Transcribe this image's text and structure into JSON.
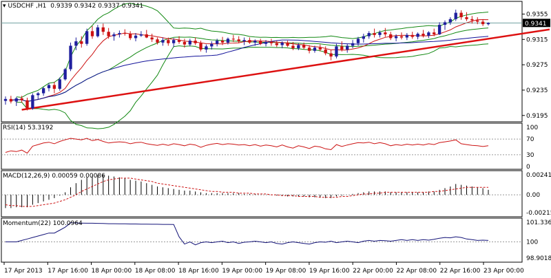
{
  "chart_data": {
    "type": "candlestick",
    "symbol": "USDCHF",
    "timeframe": "H1",
    "ohlc_readout": [
      "0.9339",
      "0.9342",
      "0.9337",
      "0.9341"
    ],
    "current_price": "0.9341",
    "colors": {
      "bull": "#1f1f9e",
      "bear": "#cc1111",
      "trend": "#dd1111",
      "bollinger": "#118811",
      "sma_fast": "#cc1111",
      "sma_slow": "#111199",
      "rsi": "#cc1111",
      "macd_hist": "#000000",
      "macd_signal": "#cc1111",
      "momentum": "#111177"
    },
    "price_axis": {
      "ticks": [
        "0.9355",
        "0.9315",
        "0.9275",
        "0.9235",
        "0.9195"
      ],
      "range": [
        0.9185,
        0.9375
      ]
    },
    "x_labels": [
      "17 Apr 2013",
      "17 Apr 16:00",
      "18 Apr 00:00",
      "18 Apr 08:00",
      "18 Apr 16:00",
      "19 Apr 00:00",
      "19 Apr 08:00",
      "19 Apr 16:00",
      "22 Apr 00:00",
      "22 Apr 08:00",
      "22 Apr 16:00",
      "23 Apr 00:00"
    ],
    "candles": [
      [
        0.9218,
        0.9225,
        0.9212,
        0.9221
      ],
      [
        0.9221,
        0.9226,
        0.9214,
        0.9217
      ],
      [
        0.9217,
        0.9224,
        0.921,
        0.9222
      ],
      [
        0.9222,
        0.9226,
        0.9215,
        0.9219
      ],
      [
        0.9219,
        0.9223,
        0.9203,
        0.9206
      ],
      [
        0.9206,
        0.923,
        0.9204,
        0.9227
      ],
      [
        0.9227,
        0.9232,
        0.922,
        0.923
      ],
      [
        0.923,
        0.924,
        0.9226,
        0.9238
      ],
      [
        0.9238,
        0.9246,
        0.9233,
        0.9243
      ],
      [
        0.9243,
        0.9248,
        0.923,
        0.9237
      ],
      [
        0.9237,
        0.9255,
        0.9234,
        0.9252
      ],
      [
        0.9252,
        0.927,
        0.925,
        0.9268
      ],
      [
        0.9268,
        0.931,
        0.9265,
        0.9305
      ],
      [
        0.9305,
        0.9318,
        0.9298,
        0.9312
      ],
      [
        0.9312,
        0.932,
        0.9302,
        0.9308
      ],
      [
        0.9308,
        0.9332,
        0.9305,
        0.9328
      ],
      [
        0.9328,
        0.9336,
        0.9316,
        0.932
      ],
      [
        0.932,
        0.9338,
        0.9318,
        0.9334
      ],
      [
        0.9334,
        0.934,
        0.9322,
        0.9327
      ],
      [
        0.9327,
        0.9333,
        0.9316,
        0.932
      ],
      [
        0.932,
        0.9326,
        0.9313,
        0.9323
      ],
      [
        0.9323,
        0.9329,
        0.9318,
        0.9325
      ],
      [
        0.9325,
        0.9331,
        0.9321,
        0.9324
      ],
      [
        0.9324,
        0.9328,
        0.9314,
        0.9317
      ],
      [
        0.9317,
        0.9325,
        0.9312,
        0.9321
      ],
      [
        0.9321,
        0.9328,
        0.9319,
        0.9323
      ],
      [
        0.9323,
        0.933,
        0.9317,
        0.9318
      ],
      [
        0.9318,
        0.9324,
        0.9311,
        0.9315
      ],
      [
        0.9315,
        0.9318,
        0.9307,
        0.931
      ],
      [
        0.931,
        0.9318,
        0.9305,
        0.9314
      ],
      [
        0.9314,
        0.9318,
        0.9305,
        0.9309
      ],
      [
        0.9309,
        0.9317,
        0.9303,
        0.9314
      ],
      [
        0.9314,
        0.932,
        0.9308,
        0.9311
      ],
      [
        0.9311,
        0.9316,
        0.9302,
        0.9307
      ],
      [
        0.9307,
        0.9316,
        0.9304,
        0.9313
      ],
      [
        0.9313,
        0.9318,
        0.9306,
        0.9309
      ],
      [
        0.9309,
        0.9313,
        0.9296,
        0.9299
      ],
      [
        0.9299,
        0.9307,
        0.9294,
        0.9304
      ],
      [
        0.9304,
        0.9312,
        0.9299,
        0.9308
      ],
      [
        0.9308,
        0.9316,
        0.9304,
        0.9313
      ],
      [
        0.9313,
        0.9319,
        0.9306,
        0.931
      ],
      [
        0.931,
        0.9318,
        0.9307,
        0.9316
      ],
      [
        0.9316,
        0.9322,
        0.9311,
        0.9315
      ],
      [
        0.9315,
        0.932,
        0.9309,
        0.9312
      ],
      [
        0.9312,
        0.9318,
        0.9306,
        0.9314
      ],
      [
        0.9314,
        0.9318,
        0.9308,
        0.931
      ],
      [
        0.931,
        0.9315,
        0.9305,
        0.9313
      ],
      [
        0.9313,
        0.9316,
        0.9306,
        0.9308
      ],
      [
        0.9308,
        0.9314,
        0.9304,
        0.9311
      ],
      [
        0.9311,
        0.9316,
        0.9305,
        0.9309
      ],
      [
        0.9309,
        0.9313,
        0.9303,
        0.9306
      ],
      [
        0.9306,
        0.9312,
        0.9301,
        0.931
      ],
      [
        0.931,
        0.9313,
        0.9303,
        0.9305
      ],
      [
        0.9305,
        0.9311,
        0.9298,
        0.9301
      ],
      [
        0.9301,
        0.9309,
        0.9298,
        0.9306
      ],
      [
        0.9306,
        0.931,
        0.9299,
        0.9302
      ],
      [
        0.9302,
        0.9306,
        0.9293,
        0.9297
      ],
      [
        0.9297,
        0.9305,
        0.9294,
        0.9302
      ],
      [
        0.9302,
        0.9307,
        0.9296,
        0.9299
      ],
      [
        0.9299,
        0.9304,
        0.929,
        0.9293
      ],
      [
        0.9293,
        0.9299,
        0.9282,
        0.9288
      ],
      [
        0.9288,
        0.9308,
        0.9285,
        0.9304
      ],
      [
        0.9304,
        0.9312,
        0.9296,
        0.9299
      ],
      [
        0.9299,
        0.9308,
        0.9294,
        0.9305
      ],
      [
        0.9305,
        0.9314,
        0.9301,
        0.9309
      ],
      [
        0.9309,
        0.9319,
        0.9305,
        0.9316
      ],
      [
        0.9316,
        0.9324,
        0.931,
        0.932
      ],
      [
        0.932,
        0.9328,
        0.9316,
        0.9325
      ],
      [
        0.9325,
        0.9332,
        0.9318,
        0.9322
      ],
      [
        0.9322,
        0.9329,
        0.9318,
        0.9326
      ],
      [
        0.9326,
        0.9333,
        0.9319,
        0.9323
      ],
      [
        0.9323,
        0.9327,
        0.9314,
        0.9317
      ],
      [
        0.9317,
        0.9323,
        0.9312,
        0.932
      ],
      [
        0.932,
        0.9326,
        0.9315,
        0.9318
      ],
      [
        0.9318,
        0.9325,
        0.9314,
        0.9322
      ],
      [
        0.9322,
        0.9327,
        0.9316,
        0.9319
      ],
      [
        0.9319,
        0.9326,
        0.9315,
        0.9324
      ],
      [
        0.9324,
        0.933,
        0.9318,
        0.9321
      ],
      [
        0.9321,
        0.9328,
        0.9317,
        0.9326
      ],
      [
        0.9326,
        0.9332,
        0.932,
        0.9323
      ],
      [
        0.9323,
        0.9342,
        0.9322,
        0.9338
      ],
      [
        0.9338,
        0.9345,
        0.933,
        0.9342
      ],
      [
        0.9342,
        0.935,
        0.9338,
        0.9347
      ],
      [
        0.9347,
        0.9362,
        0.9344,
        0.9357
      ],
      [
        0.9357,
        0.9361,
        0.9346,
        0.935
      ],
      [
        0.935,
        0.9358,
        0.9344,
        0.9347
      ],
      [
        0.9347,
        0.9352,
        0.934,
        0.9345
      ],
      [
        0.9345,
        0.935,
        0.9339,
        0.9343
      ],
      [
        0.9343,
        0.9347,
        0.9336,
        0.9339
      ],
      [
        0.9339,
        0.9342,
        0.9337,
        0.9341
      ]
    ],
    "trendline": {
      "start": {
        "candle": 3,
        "price": 0.9204
      },
      "end": {
        "candle": 89,
        "price": 0.9316
      }
    },
    "rsi": {
      "label": "RSI(14)",
      "value": "53.3192",
      "axis_ticks": [
        "100",
        "70",
        "30",
        "0"
      ],
      "levels": [
        70,
        30
      ],
      "values": [
        36,
        40,
        38,
        42,
        34,
        52,
        56,
        60,
        62,
        58,
        64,
        68,
        72,
        70,
        68,
        72,
        66,
        69,
        64,
        60,
        62,
        63,
        62,
        58,
        61,
        62,
        58,
        56,
        54,
        57,
        54,
        58,
        56,
        53,
        57,
        55,
        49,
        54,
        57,
        59,
        56,
        58,
        57,
        55,
        56,
        53,
        56,
        52,
        55,
        53,
        50,
        55,
        50,
        47,
        53,
        50,
        46,
        52,
        50,
        45,
        43,
        56,
        51,
        55,
        58,
        61,
        60,
        62,
        58,
        61,
        58,
        53,
        56,
        54,
        57,
        55,
        57,
        55,
        58,
        56,
        61,
        63,
        65,
        68,
        58,
        56,
        54,
        53,
        51,
        53
      ]
    },
    "macd": {
      "label": "MACD(12,26,9)",
      "main": "0.00059",
      "signal": "0.00086",
      "axis_ticks": [
        "0.00241",
        "0.00",
        "-0.00215"
      ],
      "range": [
        -0.00215,
        0.00241
      ],
      "histogram": [
        -0.0016,
        -0.0016,
        -0.0015,
        -0.0015,
        -0.0015,
        -0.0012,
        -0.001,
        -0.0008,
        -0.0006,
        -0.0004,
        -0.0001,
        0.0003,
        0.0009,
        0.0014,
        0.0018,
        0.0021,
        0.0023,
        0.0024,
        0.0024,
        0.0023,
        0.0022,
        0.0021,
        0.002,
        0.0018,
        0.0017,
        0.0016,
        0.0014,
        0.0012,
        0.001,
        0.0009,
        0.0008,
        0.0007,
        0.0006,
        0.0005,
        0.0005,
        0.0004,
        0.0003,
        0.0002,
        0.0002,
        0.0002,
        0.0002,
        0.0002,
        0.0002,
        0.0002,
        0.0001,
        0.0001,
        0.0001,
        0.0,
        0.0,
        0.0,
        -0.0001,
        -0.0001,
        -0.0002,
        -0.0002,
        -0.0002,
        -0.0002,
        -0.0003,
        -0.0003,
        -0.0003,
        -0.0004,
        -0.0004,
        -0.0002,
        -0.0001,
        0.0,
        0.0001,
        0.0002,
        0.0003,
        0.0004,
        0.0004,
        0.0004,
        0.0004,
        0.0003,
        0.0003,
        0.0003,
        0.0003,
        0.0003,
        0.0003,
        0.0003,
        0.0004,
        0.0004,
        0.0006,
        0.0008,
        0.001,
        0.0013,
        0.0012,
        0.0011,
        0.001,
        0.0009,
        0.0008,
        0.0006
      ],
      "signal_line": [
        -0.0012,
        -0.0013,
        -0.0013,
        -0.0014,
        -0.0014,
        -0.0014,
        -0.0013,
        -0.0012,
        -0.0011,
        -0.001,
        -0.0008,
        -0.0006,
        -0.0003,
        0.0,
        0.0004,
        0.0007,
        0.001,
        0.0013,
        0.0016,
        0.0018,
        0.0019,
        0.002,
        0.002,
        0.002,
        0.0019,
        0.0018,
        0.0017,
        0.0016,
        0.0014,
        0.0013,
        0.0012,
        0.0011,
        0.001,
        0.0009,
        0.0008,
        0.0007,
        0.0006,
        0.0005,
        0.0004,
        0.0004,
        0.0003,
        0.0003,
        0.0003,
        0.0002,
        0.0002,
        0.0002,
        0.0001,
        0.0001,
        0.0001,
        0.0,
        0.0,
        -0.0001,
        -0.0001,
        -0.0001,
        -0.0002,
        -0.0002,
        -0.0002,
        -0.0002,
        -0.0003,
        -0.0003,
        -0.0003,
        -0.0003,
        -0.0002,
        -0.0002,
        -0.0001,
        0.0,
        0.0001,
        0.0001,
        0.0002,
        0.0002,
        0.0003,
        0.0003,
        0.0003,
        0.0003,
        0.0003,
        0.0003,
        0.0003,
        0.0003,
        0.0003,
        0.0004,
        0.0004,
        0.0005,
        0.0006,
        0.0007,
        0.0008,
        0.0009,
        0.0009,
        0.0009,
        0.0009,
        0.0009
      ]
    },
    "momentum": {
      "label": "Momentum(22)",
      "value": "100.0964",
      "axis_ticks": [
        "101.336",
        "100",
        "98.9018"
      ],
      "range": [
        98.9018,
        101.336
      ],
      "values": [
        100.0,
        100.0,
        100.0,
        100.1,
        100.2,
        100.3,
        100.4,
        100.5,
        100.6,
        100.6,
        100.8,
        101.0,
        101.3,
        101.29,
        101.28,
        101.27,
        101.27,
        101.26,
        101.25,
        101.24,
        101.24,
        101.23,
        101.23,
        101.22,
        101.22,
        101.21,
        101.21,
        101.2,
        101.2,
        101.19,
        101.19,
        101.18,
        100.35,
        99.85,
        100.0,
        99.8,
        99.95,
        100.0,
        99.95,
        100.0,
        100.05,
        99.95,
        100.0,
        99.9,
        99.98,
        100.0,
        100.05,
        100.0,
        99.95,
        100.0,
        99.9,
        99.85,
        99.95,
        100.0,
        99.95,
        99.9,
        99.85,
        99.95,
        100.0,
        99.98,
        100.05,
        99.95,
        100.0,
        100.05,
        100.0,
        99.95,
        100.05,
        100.1,
        100.05,
        100.1,
        100.08,
        100.05,
        100.1,
        100.15,
        100.1,
        100.15,
        100.1,
        100.15,
        100.12,
        100.18,
        100.25,
        100.3,
        100.28,
        100.35,
        100.3,
        100.2,
        100.15,
        100.1,
        100.12,
        100.1
      ]
    }
  }
}
